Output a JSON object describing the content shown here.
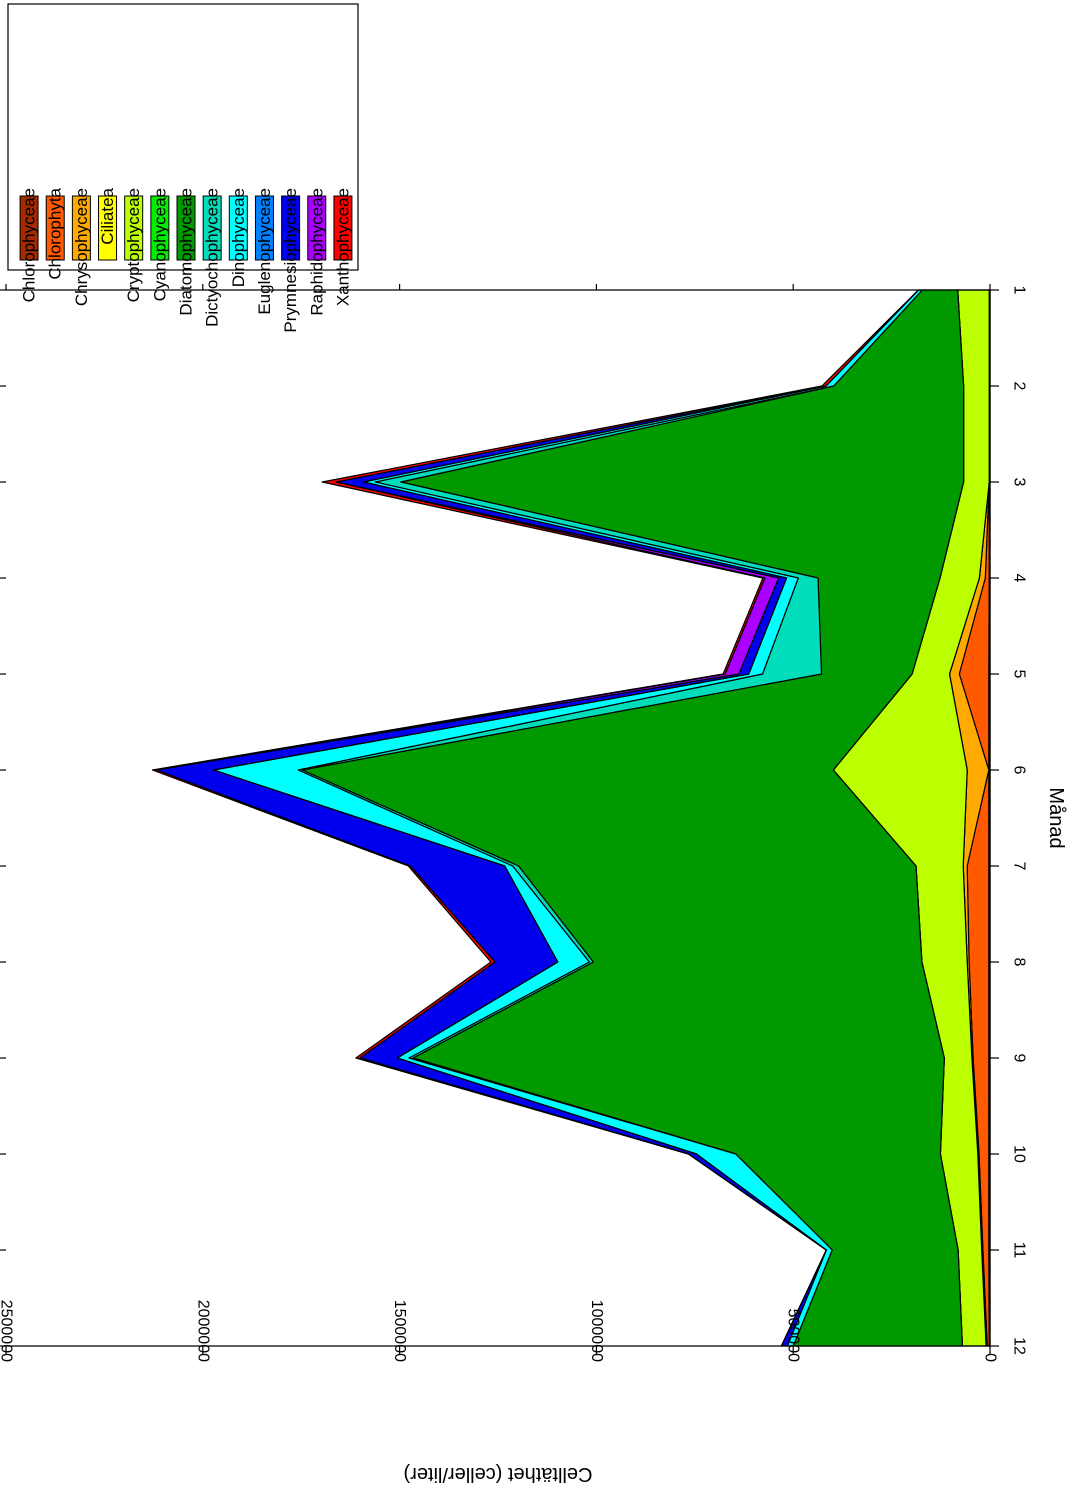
{
  "chart_data": {
    "type": "area",
    "stacked": true,
    "orientation": "rotated-90-clockwise",
    "xlabel": "Månad",
    "ylabel": "Celltäthet (celler/liter)",
    "x": [
      1,
      2,
      3,
      4,
      5,
      6,
      7,
      8,
      9,
      10,
      11,
      12
    ],
    "xlim": [
      1,
      12
    ],
    "ylim": [
      0,
      2500000
    ],
    "xticks": [
      "1",
      "2",
      "3",
      "4",
      "5",
      "6",
      "7",
      "8",
      "9",
      "10",
      "11",
      "12"
    ],
    "yticks": [
      "0",
      "500000",
      "1000000",
      "1500000",
      "2000000",
      "2500000"
    ],
    "grid": false,
    "legend_position": "top-right",
    "series": [
      {
        "name": "Chlorophyceae",
        "color": "#a52a00",
        "values": [
          2000,
          2000,
          2000,
          2000,
          3000,
          3000,
          3000,
          3000,
          3000,
          3000,
          3000,
          2000
        ]
      },
      {
        "name": "Chlorophyta",
        "color": "#ff5a00",
        "values": [
          0,
          0,
          0,
          10000,
          75000,
          0,
          55000,
          50000,
          40000,
          25000,
          15000,
          5000
        ]
      },
      {
        "name": "Chrysophyceae",
        "color": "#ffaa00",
        "values": [
          0,
          0,
          0,
          15000,
          25000,
          55000,
          10000,
          5000,
          3000,
          3000,
          3000,
          3000
        ]
      },
      {
        "name": "Ciliatea",
        "color": "#ffff00",
        "values": [
          0,
          0,
          0,
          0,
          0,
          0,
          0,
          0,
          0,
          0,
          0,
          0
        ]
      },
      {
        "name": "Cryptophyceae",
        "color": "#bbff00",
        "values": [
          80000,
          65000,
          65000,
          100000,
          95000,
          340000,
          120000,
          115000,
          70000,
          95000,
          60000,
          60000
        ]
      },
      {
        "name": "Cyanophyceae",
        "color": "#00ee00",
        "values": [
          0,
          0,
          0,
          0,
          0,
          0,
          0,
          0,
          0,
          0,
          0,
          0
        ]
      },
      {
        "name": "Diatomophyceae",
        "color": "#009900",
        "values": [
          90000,
          330000,
          1430000,
          310000,
          230000,
          1350000,
          1010000,
          835000,
          1350000,
          520000,
          320000,
          430000
        ]
      },
      {
        "name": "Dictyochophyceae",
        "color": "#00ddbb",
        "values": [
          0,
          0,
          65000,
          50000,
          150000,
          10000,
          15000,
          10000,
          10000,
          0,
          0,
          0
        ]
      },
      {
        "name": "Dinophyceae",
        "color": "#00ffff",
        "values": [
          10000,
          20000,
          30000,
          30000,
          35000,
          215000,
          20000,
          80000,
          30000,
          100000,
          15000,
          15000
        ]
      },
      {
        "name": "Euglenophyceae",
        "color": "#0080ff",
        "values": [
          0,
          0,
          0,
          0,
          0,
          0,
          0,
          0,
          0,
          0,
          0,
          0
        ]
      },
      {
        "name": "Prymnesiophyceae",
        "color": "#0000ee",
        "values": [
          0,
          0,
          70000,
          20000,
          25000,
          145000,
          240000,
          160000,
          95000,
          20000,
          0,
          15000
        ]
      },
      {
        "name": "Raphidophyceae",
        "color": "#aa00ff",
        "values": [
          0,
          0,
          0,
          35000,
          35000,
          0,
          0,
          0,
          0,
          0,
          0,
          0
        ]
      },
      {
        "name": "Xanthophyceae",
        "color": "#ff0000",
        "values": [
          0,
          10000,
          35000,
          5000,
          5000,
          10000,
          5000,
          10000,
          10000,
          0,
          0,
          0
        ]
      }
    ]
  }
}
